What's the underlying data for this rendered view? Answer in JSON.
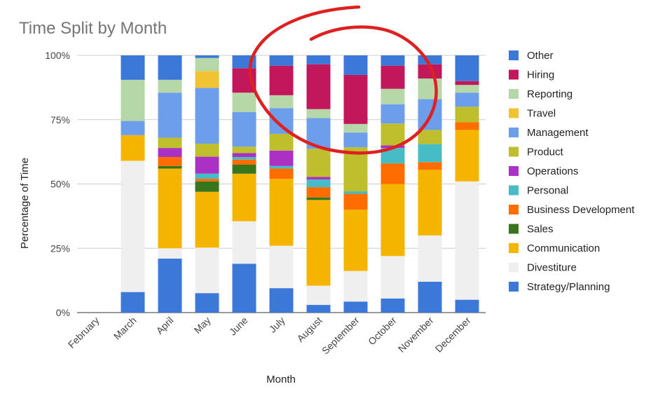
{
  "chart_data": {
    "type": "bar",
    "stacked": true,
    "normalized": true,
    "title": "Time Split by Month",
    "xlabel": "Month",
    "ylabel": "Percentage of Time",
    "ylim": [
      0,
      100
    ],
    "yticks": [
      "0%",
      "25%",
      "50%",
      "75%",
      "100%"
    ],
    "grid": true,
    "legend_position": "right",
    "categories": [
      "February",
      "March",
      "April",
      "May",
      "June",
      "July",
      "August",
      "September",
      "October",
      "November",
      "December"
    ],
    "series": [
      {
        "name": "Strategy/Planning",
        "color": "#3c78d8",
        "values": [
          0,
          8,
          21,
          7.5,
          19,
          9.5,
          3,
          4.5,
          5.5,
          12,
          5
        ]
      },
      {
        "name": "Divestiture",
        "color": "#efefef",
        "values": [
          0,
          51,
          4,
          17.5,
          16.5,
          16.5,
          7.5,
          12.5,
          16.5,
          18,
          46
        ]
      },
      {
        "name": "Communication",
        "color": "#f4b400",
        "values": [
          0,
          10,
          31,
          21.5,
          18.5,
          26,
          33.5,
          25,
          28,
          25.5,
          20
        ]
      },
      {
        "name": "Sales",
        "color": "#38761d",
        "values": [
          0,
          0,
          1,
          4,
          3.5,
          0,
          1,
          0,
          0,
          0,
          0
        ]
      },
      {
        "name": "Business Development",
        "color": "#ff6d01",
        "values": [
          0,
          0,
          3.5,
          1,
          2,
          4,
          4,
          6.5,
          8,
          3,
          3
        ]
      },
      {
        "name": "Personal",
        "color": "#46bdc6",
        "values": [
          0,
          0,
          0,
          2,
          1,
          1,
          3,
          1,
          6,
          7,
          0
        ]
      },
      {
        "name": "Operations",
        "color": "#ab30c4",
        "values": [
          0,
          0,
          3.5,
          6.5,
          1.5,
          6,
          1,
          0,
          1,
          0,
          0
        ]
      },
      {
        "name": "Product",
        "color": "#bfbf2d",
        "values": [
          0,
          0,
          4,
          5,
          2.5,
          6.5,
          11,
          18,
          8.5,
          5.5,
          6
        ]
      },
      {
        "name": "Management",
        "color": "#6d9eeb",
        "values": [
          0,
          5.5,
          17.5,
          21.5,
          13.5,
          10,
          12,
          6,
          7.5,
          12,
          5.5
        ]
      },
      {
        "name": "Travel",
        "color": "#f1c232",
        "values": [
          0,
          0,
          0,
          6.5,
          0,
          0,
          0,
          0,
          0,
          0,
          0
        ]
      },
      {
        "name": "Reporting",
        "color": "#b6d7a8",
        "values": [
          0,
          16,
          5,
          5,
          7.5,
          5,
          3.5,
          3.5,
          6,
          8,
          3
        ]
      },
      {
        "name": "Hiring",
        "color": "#c2185b",
        "values": [
          0,
          0,
          0,
          0,
          9.5,
          11.5,
          17.5,
          20,
          9,
          5.5,
          1.5
        ]
      },
      {
        "name": "Other",
        "color": "#3c78d8",
        "values": [
          0,
          9.5,
          9.5,
          1,
          5,
          4,
          3.5,
          8,
          4,
          3.5,
          10
        ]
      }
    ],
    "legend_order": [
      "Other",
      "Hiring",
      "Reporting",
      "Travel",
      "Management",
      "Product",
      "Operations",
      "Personal",
      "Business Development",
      "Sales",
      "Communication",
      "Divestiture",
      "Strategy/Planning"
    ],
    "annotation": {
      "type": "hand-drawn-circle",
      "color": "#e02020"
    }
  }
}
